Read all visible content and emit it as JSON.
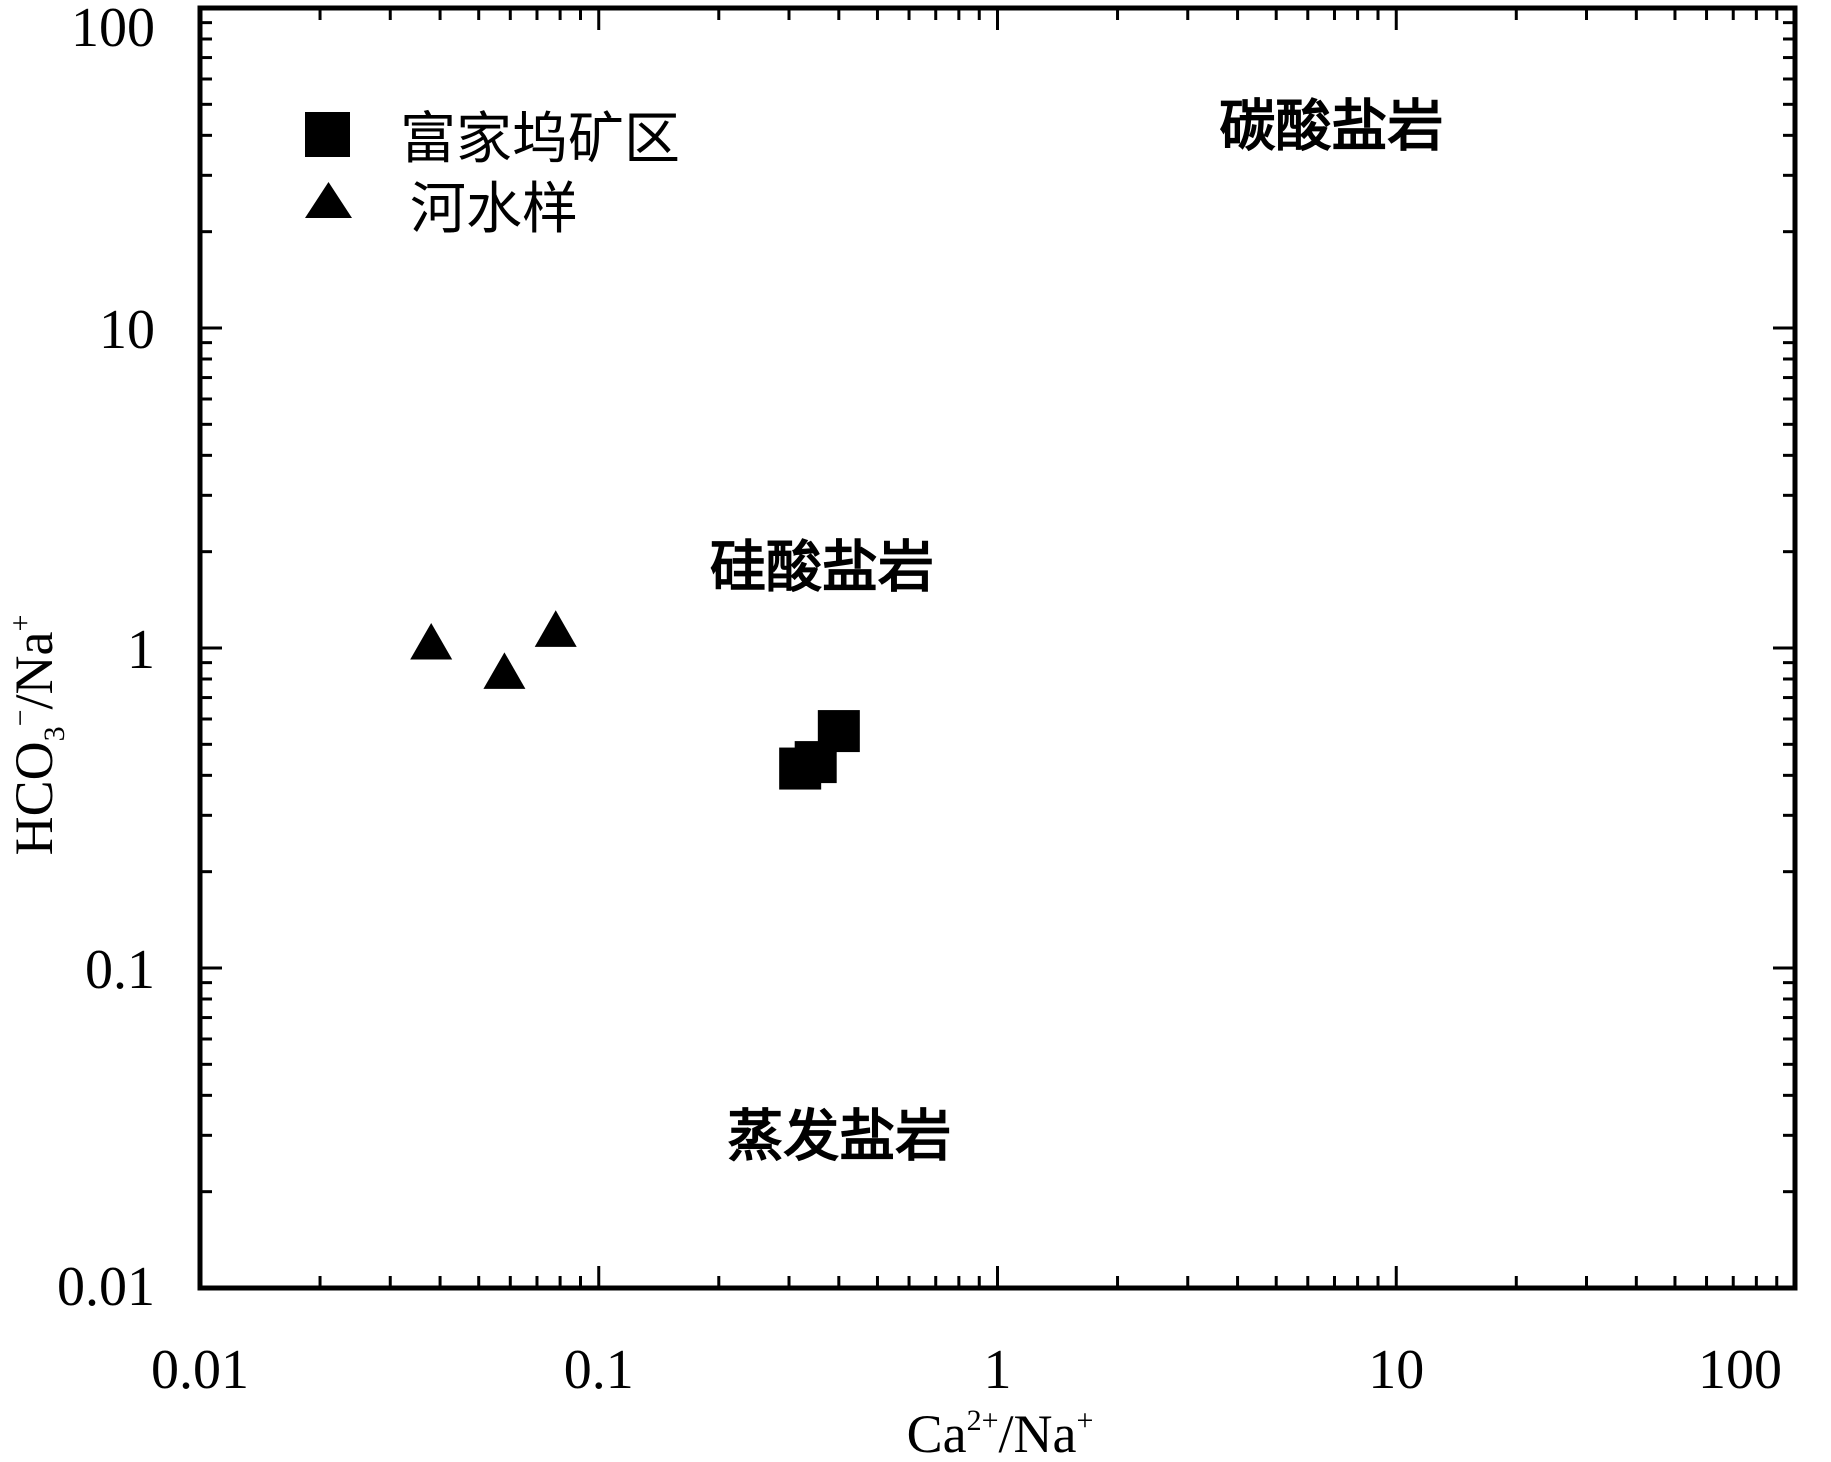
{
  "chart_data": {
    "type": "scatter",
    "x_scale": "log",
    "y_scale": "log",
    "xlim": [
      0.01,
      100
    ],
    "ylim": [
      0.01,
      100
    ],
    "x_ticks": [
      "0.01",
      "0.1",
      "1",
      "10",
      "100"
    ],
    "y_ticks": [
      "0.01",
      "0.1",
      "1",
      "10",
      "100"
    ],
    "xlabel": {
      "base": "Ca",
      "sup1": "2+",
      "mid": "/Na",
      "sup2": "+"
    },
    "ylabel": {
      "base": "HCO",
      "sub": "3",
      "sup1": "−",
      "mid": "/Na",
      "sup2": "+"
    },
    "grid": false,
    "legend_position": "top-left",
    "series": [
      {
        "name": "富家坞矿区",
        "marker": "square",
        "color": "#000000",
        "points": [
          {
            "x": 0.32,
            "y": 0.42
          },
          {
            "x": 0.35,
            "y": 0.44
          },
          {
            "x": 0.4,
            "y": 0.55
          }
        ]
      },
      {
        "name": "河水样",
        "marker": "triangle",
        "color": "#000000",
        "points": [
          {
            "x": 0.038,
            "y": 1.05
          },
          {
            "x": 0.058,
            "y": 0.85
          },
          {
            "x": 0.078,
            "y": 1.15
          }
        ]
      }
    ],
    "annotations": [
      {
        "text": "碳酸盐岩",
        "x": 3.6,
        "y": 43
      },
      {
        "text": "硅酸盐岩",
        "x": 0.19,
        "y": 1.8
      },
      {
        "text": "蒸发盐岩",
        "x": 0.21,
        "y": 0.03
      }
    ]
  }
}
